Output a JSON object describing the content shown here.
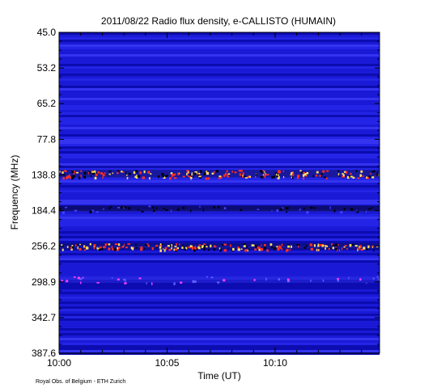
{
  "chart_data": {
    "type": "heatmap",
    "title": "2011/08/22  Radio flux density, e-CALLISTO (HUMAIN)",
    "xlabel": "Time (UT)",
    "ylabel": "Frequency (MHz)",
    "x_ticks": [
      "10:00",
      "10:05",
      "10:10"
    ],
    "y_ticks": [
      "45.0",
      "53.2",
      "65.2",
      "77.8",
      "138.8",
      "184.4",
      "256.2",
      "298.9",
      "342.7",
      "387.6"
    ],
    "xlim": [
      "10:00",
      "10:14:50"
    ],
    "ylim": [
      45.0,
      387.6
    ],
    "bands": [
      {
        "kind": "burst",
        "freq_from": 130.0,
        "freq_to": 142.0
      },
      {
        "kind": "dark",
        "freq_from": 178.0,
        "freq_to": 186.0
      },
      {
        "kind": "burst",
        "freq_from": 250.0,
        "freq_to": 260.0
      },
      {
        "kind": "interference",
        "freq_from": 292.0,
        "freq_to": 300.0
      }
    ],
    "colors": {
      "background": "#1a1ad6",
      "dark": "#000020",
      "burst": "#ff3020",
      "hot": "#ffe060"
    }
  },
  "footer": {
    "credit": "Royal Obs. of Belgium - ETH Zurich"
  }
}
